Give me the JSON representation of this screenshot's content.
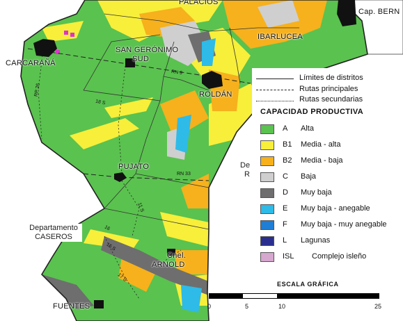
{
  "places": [
    {
      "id": "palacios",
      "label": "PALACIOS"
    },
    {
      "id": "cap-bermudez",
      "label": "Cap. BERN"
    },
    {
      "id": "ibarlucea",
      "label": "IBARLUCEA"
    },
    {
      "id": "carcarana",
      "label": "CARCARAÑÁ"
    },
    {
      "id": "san-geronimo",
      "label": "SAN GERÓNIMO"
    },
    {
      "id": "sud",
      "label": "SUD"
    },
    {
      "id": "roldan",
      "label": "ROLDÁN"
    },
    {
      "id": "pujato",
      "label": "PUJATO"
    },
    {
      "id": "cnel",
      "label": "Cnel."
    },
    {
      "id": "arnold",
      "label": "ARNOLD"
    },
    {
      "id": "fuentes",
      "label": "FUENTES"
    }
  ],
  "departments": [
    {
      "id": "caseros",
      "line1": "Departamento",
      "line2": "CASEROS"
    },
    {
      "id": "de-right",
      "line1": "De",
      "line2": "R"
    }
  ],
  "routes": [
    {
      "id": "rn9",
      "label": "RN 9"
    },
    {
      "id": "rn33",
      "label": "RN 33"
    },
    {
      "id": "rp26",
      "label": "RP 26"
    },
    {
      "id": "r18s",
      "label": "18 S"
    },
    {
      "id": "r11s",
      "label": "11 S"
    },
    {
      "id": "r15s",
      "label": "15 S"
    },
    {
      "id": "r17s",
      "label": "17 S"
    },
    {
      "id": "r16",
      "label": "16"
    }
  ],
  "legend": {
    "lines": [
      {
        "label": "Límites de distritos",
        "style": "solid"
      },
      {
        "label": "Rutas principales",
        "style": "dashed"
      },
      {
        "label": "Rutas secundarias",
        "style": "dotted"
      }
    ],
    "title": "CAPACIDAD  PRODUCTIVA",
    "classes": [
      {
        "code": "A",
        "label": "Alta",
        "color": "#5ac24f"
      },
      {
        "code": "B1",
        "label": "Media - alta",
        "color": "#f7ef3a"
      },
      {
        "code": "B2",
        "label": "Media - baja",
        "color": "#f6b11c"
      },
      {
        "code": "C",
        "label": "Baja",
        "color": "#cfcfcf"
      },
      {
        "code": "D",
        "label": "Muy baja",
        "color": "#6e6e6e"
      },
      {
        "code": "E",
        "label": "Muy baja - anegable",
        "color": "#2ebbe8"
      },
      {
        "code": "F",
        "label": "Muy baja - muy anegable",
        "color": "#1f7fd6"
      },
      {
        "code": "L",
        "label": "Lagunas",
        "color": "#2a2f8f"
      },
      {
        "code": "ISL",
        "label": "Complejo isleño",
        "color": "#d6a7cf"
      }
    ]
  },
  "scale": {
    "title": "ESCALA GRÁFICA",
    "ticks": [
      "0",
      "5",
      "10",
      "25"
    ]
  }
}
